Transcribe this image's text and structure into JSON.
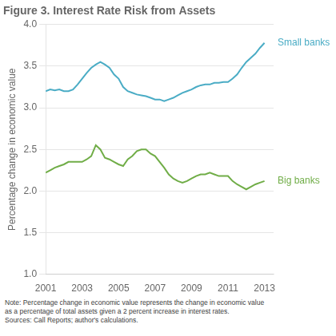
{
  "chart_data": {
    "type": "line",
    "title": "Figure 3. Interest Rate Risk from Assets",
    "ylabel": "Percentage change in economic value",
    "note": "Note: Percentage change in economic value represents the change in economic value\nas a percentage of total assets given a 2 percent increase in interest rates.\nSources: Call Reports; author's calculations.",
    "x": [
      2001.0,
      2001.25,
      2001.5,
      2001.75,
      2002.0,
      2002.25,
      2002.5,
      2002.75,
      2003.0,
      2003.25,
      2003.5,
      2003.75,
      2004.0,
      2004.25,
      2004.5,
      2004.75,
      2005.0,
      2005.25,
      2005.5,
      2005.75,
      2006.0,
      2006.25,
      2006.5,
      2006.75,
      2007.0,
      2007.25,
      2007.5,
      2007.75,
      2008.0,
      2008.25,
      2008.5,
      2008.75,
      2009.0,
      2009.25,
      2009.5,
      2009.75,
      2010.0,
      2010.25,
      2010.5,
      2010.75,
      2011.0,
      2011.25,
      2011.5,
      2011.75,
      2012.0,
      2012.25,
      2012.5,
      2012.75,
      2013.0
    ],
    "series": [
      {
        "name": "Small banks",
        "color": "#4aacc5",
        "values": [
          3.2,
          3.22,
          3.21,
          3.22,
          3.2,
          3.2,
          3.22,
          3.28,
          3.35,
          3.42,
          3.48,
          3.52,
          3.55,
          3.52,
          3.48,
          3.4,
          3.35,
          3.25,
          3.2,
          3.18,
          3.16,
          3.15,
          3.14,
          3.12,
          3.1,
          3.1,
          3.08,
          3.1,
          3.12,
          3.15,
          3.18,
          3.2,
          3.22,
          3.25,
          3.27,
          3.28,
          3.28,
          3.3,
          3.3,
          3.31,
          3.31,
          3.35,
          3.4,
          3.48,
          3.55,
          3.6,
          3.65,
          3.72,
          3.78
        ]
      },
      {
        "name": "Big banks",
        "color": "#70ad47",
        "values": [
          2.22,
          2.25,
          2.28,
          2.3,
          2.32,
          2.35,
          2.35,
          2.35,
          2.35,
          2.38,
          2.42,
          2.55,
          2.5,
          2.4,
          2.38,
          2.35,
          2.32,
          2.3,
          2.38,
          2.42,
          2.48,
          2.5,
          2.5,
          2.45,
          2.42,
          2.35,
          2.28,
          2.2,
          2.15,
          2.12,
          2.1,
          2.12,
          2.15,
          2.18,
          2.2,
          2.2,
          2.22,
          2.2,
          2.18,
          2.18,
          2.18,
          2.12,
          2.08,
          2.05,
          2.02,
          2.05,
          2.08,
          2.1,
          2.12
        ]
      }
    ],
    "xlim": [
      2001,
      2013.5
    ],
    "xticks": [
      2001,
      2003,
      2005,
      2007,
      2009,
      2011,
      2013
    ],
    "ylim": [
      1.0,
      4.0
    ],
    "yticks": [
      {
        "value": 1.0,
        "label": "1.0"
      },
      1.5,
      {
        "value": 2.0,
        "label": "2.0"
      },
      2.5,
      {
        "value": 3.0,
        "label": "3.0"
      },
      3.5,
      {
        "value": 4.0,
        "label": "4.0"
      }
    ],
    "grid": true
  }
}
